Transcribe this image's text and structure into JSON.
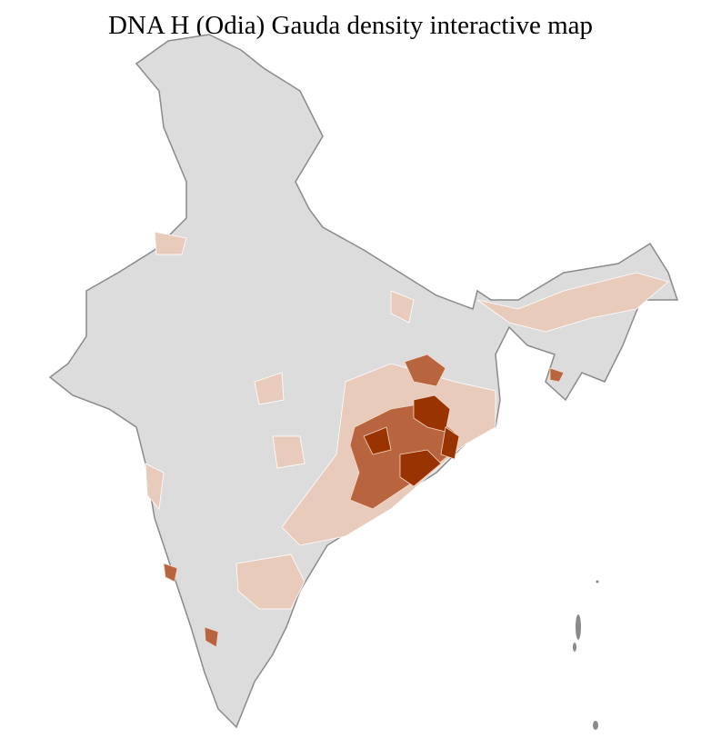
{
  "title": "DNA H (Odia) Gauda density interactive map",
  "colors": {
    "no_data": "#dcdcdc",
    "low": "#e9cbbb",
    "medium": "#b8653f",
    "high": "#993300",
    "district_border": "#ffffff",
    "state_border": "#8a8a8a"
  },
  "legend": null
}
